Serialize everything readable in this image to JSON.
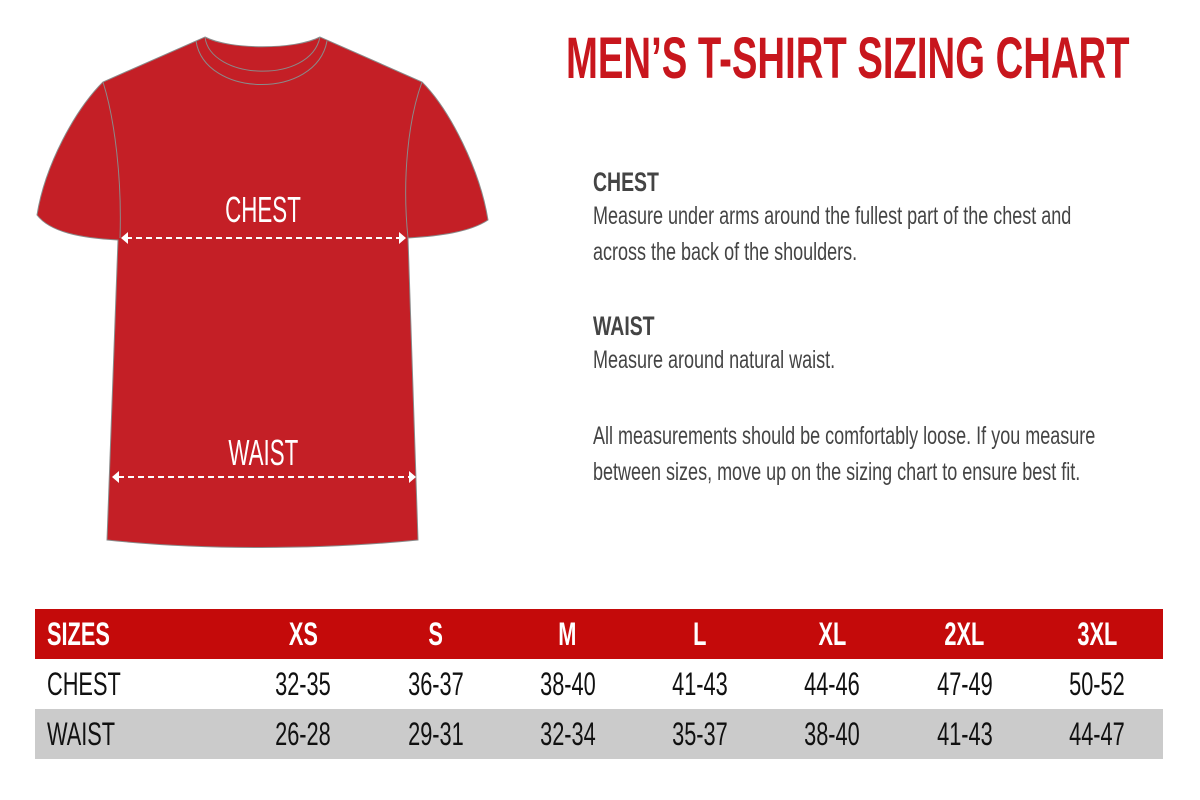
{
  "title": "MEN’S T-SHIRT SIZING CHART",
  "colors": {
    "brand_red": "#c8161d",
    "shirt_red": "#c41f26",
    "header_red": "#c40a0a",
    "alt_row": "#cbcbcb",
    "text": "#444444"
  },
  "shirt": {
    "chest_label": "CHEST",
    "waist_label": "WAIST"
  },
  "instructions": [
    {
      "heading": "CHEST",
      "text": "Measure under arms around the fullest part of the chest and across the back of the shoulders."
    },
    {
      "heading": "WAIST",
      "text": "Measure around natural waist."
    }
  ],
  "note": "All measurements should be comfortably loose. If you measure between sizes, move up on the sizing chart to ensure best fit.",
  "table": {
    "headers": [
      "SIZES",
      "XS",
      "S",
      "M",
      "L",
      "XL",
      "2XL",
      "3XL"
    ],
    "rows": [
      [
        "CHEST",
        "32-35",
        "36-37",
        "38-40",
        "41-43",
        "44-46",
        "47-49",
        "50-52"
      ],
      [
        "WAIST",
        "26-28",
        "29-31",
        "32-34",
        "35-37",
        "38-40",
        "41-43",
        "44-47"
      ]
    ]
  }
}
